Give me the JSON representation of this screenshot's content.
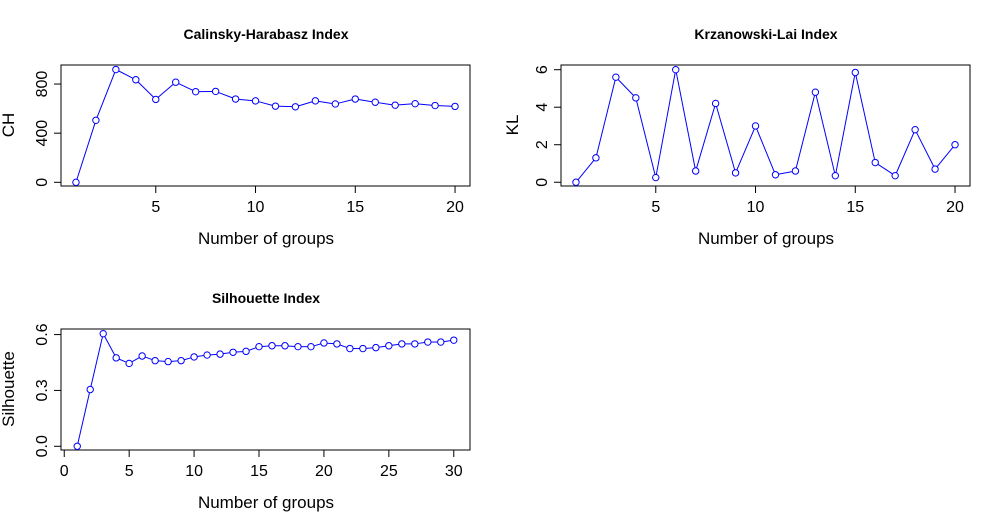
{
  "chart_data": [
    {
      "type": "line",
      "title": "Calinsky-Harabasz Index",
      "xlabel": "Number of groups",
      "ylabel": "CH",
      "xlim": [
        0.25,
        20.75
      ],
      "ylim": [
        -30,
        955
      ],
      "xticks": [
        5,
        10,
        15,
        20
      ],
      "yticks": [
        0,
        400,
        800
      ],
      "xtick_labels": [
        "5",
        "10",
        "15",
        "20"
      ],
      "ytick_labels": [
        "0",
        "400",
        "800"
      ],
      "grid": false,
      "color": "#0000ff",
      "x": [
        1,
        2,
        3,
        4,
        5,
        6,
        7,
        8,
        9,
        10,
        11,
        12,
        13,
        14,
        15,
        16,
        17,
        18,
        19,
        20
      ],
      "y": [
        0,
        505,
        918,
        835,
        675,
        815,
        738,
        740,
        678,
        663,
        620,
        615,
        663,
        638,
        678,
        652,
        628,
        640,
        625,
        618
      ]
    },
    {
      "type": "line",
      "title": "Krzanowski-Lai Index",
      "xlabel": "Number of groups",
      "ylabel": "KL",
      "xlim": [
        0.25,
        20.75
      ],
      "ylim": [
        -0.2,
        6.25
      ],
      "xticks": [
        5,
        10,
        15,
        20
      ],
      "yticks": [
        0,
        2,
        4,
        6
      ],
      "xtick_labels": [
        "5",
        "10",
        "15",
        "20"
      ],
      "ytick_labels": [
        "0",
        "2",
        "4",
        "6"
      ],
      "grid": false,
      "color": "#0000ff",
      "x": [
        1,
        2,
        3,
        4,
        5,
        6,
        7,
        8,
        9,
        10,
        11,
        12,
        13,
        14,
        15,
        16,
        17,
        18,
        19,
        20
      ],
      "y": [
        0.0,
        1.3,
        5.6,
        4.5,
        0.25,
        6.0,
        0.6,
        4.2,
        0.5,
        3.0,
        0.4,
        0.6,
        4.8,
        0.35,
        5.85,
        1.05,
        0.35,
        2.8,
        0.7,
        2.0
      ]
    },
    {
      "type": "line",
      "title": "Silhouette Index",
      "xlabel": "Number of groups",
      "ylabel": "Silhouette",
      "xlim": [
        -0.25,
        31.25
      ],
      "ylim": [
        -0.02,
        0.63
      ],
      "xticks": [
        0,
        5,
        10,
        15,
        20,
        25,
        30
      ],
      "yticks": [
        0.0,
        0.3,
        0.6
      ],
      "xtick_labels": [
        "0",
        "5",
        "10",
        "15",
        "20",
        "25",
        "30"
      ],
      "ytick_labels": [
        "0.0",
        "0.3",
        "0.6"
      ],
      "grid": false,
      "color": "#0000ff",
      "x": [
        1,
        2,
        3,
        4,
        5,
        6,
        7,
        8,
        9,
        10,
        11,
        12,
        13,
        14,
        15,
        16,
        17,
        18,
        19,
        20,
        21,
        22,
        23,
        24,
        25,
        26,
        27,
        28,
        29,
        30
      ],
      "y": [
        0.0,
        0.305,
        0.605,
        0.475,
        0.445,
        0.485,
        0.46,
        0.455,
        0.46,
        0.48,
        0.49,
        0.495,
        0.505,
        0.51,
        0.535,
        0.54,
        0.54,
        0.535,
        0.535,
        0.555,
        0.55,
        0.525,
        0.525,
        0.53,
        0.54,
        0.55,
        0.55,
        0.56,
        0.56,
        0.57
      ]
    }
  ]
}
